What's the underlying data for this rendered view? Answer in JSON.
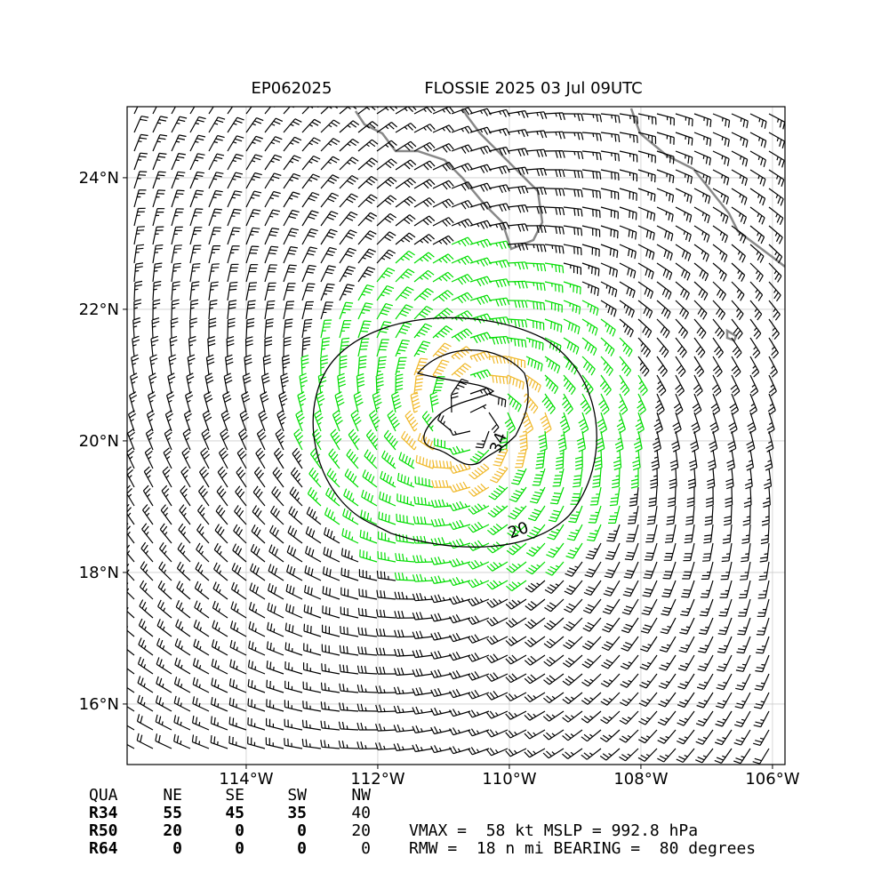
{
  "header": {
    "storm_id": "EP062025",
    "title": "FLOSSIE 2025 03 Jul 09UTC"
  },
  "map": {
    "xlim": [
      -115.81,
      -105.81
    ],
    "ylim": [
      15.08,
      25.08
    ],
    "xticks": [
      {
        "value": -114,
        "label": "114°W"
      },
      {
        "value": -112,
        "label": "112°W"
      },
      {
        "value": -110,
        "label": "110°W"
      },
      {
        "value": -108,
        "label": "108°W"
      },
      {
        "value": -106,
        "label": "106°W"
      }
    ],
    "yticks": [
      {
        "value": 16,
        "label": "16°N"
      },
      {
        "value": 18,
        "label": "18°N"
      },
      {
        "value": 20,
        "label": "20°N"
      },
      {
        "value": 22,
        "label": "22°N"
      },
      {
        "value": 24,
        "label": "24°N"
      }
    ],
    "grid": true,
    "contours": [
      {
        "level": 34
      },
      {
        "level": 20
      }
    ]
  },
  "table": {
    "header": [
      "QUA",
      "NE",
      "SE",
      "SW",
      "NW"
    ],
    "rows": [
      {
        "label": "R34",
        "values": [
          55,
          45,
          35,
          40
        ]
      },
      {
        "label": "R50",
        "values": [
          20,
          0,
          0,
          20
        ]
      },
      {
        "label": "R64",
        "values": [
          0,
          0,
          0,
          0
        ]
      }
    ]
  },
  "summary": [
    "VMAX =  58 kt MSLP = 992.8 hPa",
    "RMW =  18 n mi BEARING =  80 degrees"
  ]
}
